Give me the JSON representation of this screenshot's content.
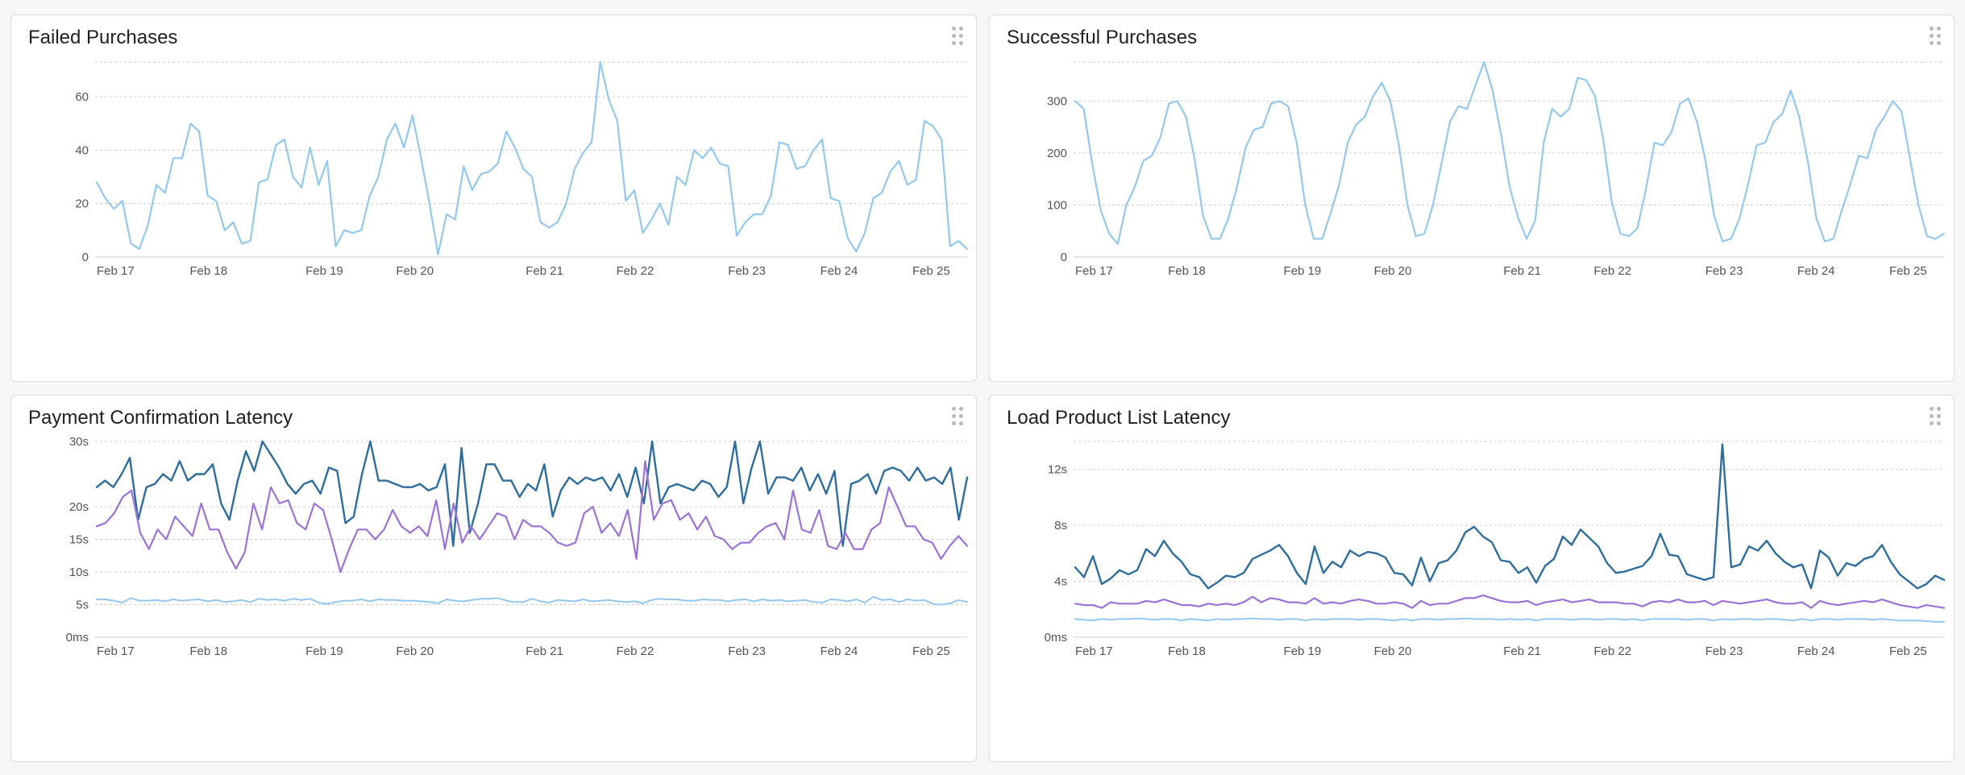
{
  "panels": [
    {
      "title": "Failed Purchases",
      "chart_data": {
        "type": "line",
        "title": "Failed Purchases",
        "x_start": "Feb 17",
        "x_step_hours": 2,
        "x_ticks": [
          "Feb 17",
          "Feb 18",
          "Feb 19",
          "Feb 20",
          "Feb 21",
          "Feb 22",
          "Feb 23",
          "Feb 24",
          "Feb 25"
        ],
        "ylim": [
          0,
          73
        ],
        "yticks": [
          0,
          20,
          40,
          60
        ],
        "ytick_labels": [
          "0",
          "20",
          "40",
          "60"
        ],
        "grid": true,
        "series": [
          {
            "color": "#94c8ee",
            "width": 2.2,
            "values": [
              28,
              22,
              18,
              21,
              5,
              3,
              12,
              27,
              24,
              37,
              37,
              50,
              47,
              23,
              21,
              10,
              13,
              5,
              6,
              28,
              29,
              42,
              44,
              30,
              26,
              41,
              27,
              36,
              4,
              10,
              9,
              10,
              23,
              30,
              44,
              50,
              41,
              53,
              37,
              20,
              1,
              16,
              14,
              34,
              25,
              31,
              32,
              35,
              47,
              41,
              33,
              30,
              13,
              11,
              13,
              20,
              33,
              39,
              43,
              73,
              59,
              51,
              21,
              25,
              9,
              14,
              20,
              12,
              30,
              27,
              40,
              37,
              41,
              35,
              34,
              8,
              13,
              16,
              16,
              23,
              43,
              42,
              33,
              34,
              40,
              44,
              22,
              21,
              7,
              2,
              9,
              22,
              24,
              32,
              36,
              27,
              29,
              51,
              49,
              44,
              4,
              6,
              3
            ]
          }
        ]
      }
    },
    {
      "title": "Successful Purchases",
      "chart_data": {
        "type": "line",
        "title": "Successful Purchases",
        "x_start": "Feb 17",
        "x_step_hours": 2,
        "x_ticks": [
          "Feb 17",
          "Feb 18",
          "Feb 19",
          "Feb 20",
          "Feb 21",
          "Feb 22",
          "Feb 23",
          "Feb 24",
          "Feb 25"
        ],
        "ylim": [
          0,
          375
        ],
        "yticks": [
          0,
          100,
          200,
          300
        ],
        "ytick_labels": [
          "0",
          "100",
          "200",
          "300"
        ],
        "grid": true,
        "series": [
          {
            "color": "#94c8ee",
            "width": 2.2,
            "values": [
              300,
              285,
              180,
              90,
              45,
              25,
              100,
              135,
              185,
              195,
              230,
              295,
              300,
              270,
              190,
              80,
              35,
              35,
              75,
              135,
              210,
              245,
              250,
              295,
              300,
              290,
              220,
              100,
              35,
              35,
              85,
              140,
              220,
              255,
              270,
              310,
              335,
              300,
              215,
              100,
              40,
              45,
              100,
              180,
              260,
              290,
              285,
              330,
              375,
              320,
              235,
              135,
              75,
              35,
              70,
              220,
              285,
              270,
              285,
              345,
              340,
              310,
              225,
              105,
              45,
              40,
              55,
              130,
              220,
              215,
              240,
              295,
              305,
              260,
              185,
              80,
              30,
              35,
              75,
              140,
              215,
              220,
              260,
              275,
              320,
              270,
              185,
              75,
              30,
              35,
              90,
              140,
              195,
              190,
              245,
              270,
              300,
              280,
              190,
              100,
              40,
              35,
              45
            ]
          }
        ]
      }
    },
    {
      "title": "Payment Confirmation Latency",
      "chart_data": {
        "type": "line",
        "title": "Payment Confirmation Latency",
        "x_start": "Feb 17",
        "x_step_hours": 2,
        "x_ticks": [
          "Feb 17",
          "Feb 18",
          "Feb 19",
          "Feb 20",
          "Feb 21",
          "Feb 22",
          "Feb 23",
          "Feb 24",
          "Feb 25"
        ],
        "ylim": [
          0,
          30
        ],
        "yticks": [
          0,
          5,
          10,
          15,
          20,
          30
        ],
        "ytick_labels": [
          "0ms",
          "5s",
          "10s",
          "15s",
          "20s",
          "30s"
        ],
        "grid": true,
        "series": [
          {
            "color": "#2f6d9c",
            "width": 2.4,
            "values": [
              23,
              24,
              23,
              25,
              27.5,
              18,
              23,
              23.5,
              25,
              24,
              27,
              24,
              25,
              25,
              26.5,
              20.5,
              18,
              24,
              28.5,
              25.5,
              30,
              28,
              26,
              23.5,
              22,
              23.5,
              24,
              22,
              26,
              25.5,
              17.5,
              18.5,
              25,
              30,
              24,
              24,
              23.5,
              23,
              23,
              23.5,
              22.5,
              23,
              26.5,
              14,
              29,
              16,
              20.5,
              26.5,
              26.5,
              24,
              24,
              21.5,
              23.5,
              22.5,
              26.5,
              18.5,
              22.5,
              24.5,
              23.5,
              24.5,
              24,
              24.5,
              22.5,
              25,
              21.5,
              26,
              20.5,
              30,
              20.5,
              23,
              23.5,
              23,
              22.5,
              24,
              23.5,
              21.5,
              23,
              30,
              20.5,
              26,
              30,
              22,
              24.5,
              24.5,
              24,
              26,
              22.5,
              25,
              22,
              25.5,
              14,
              23.5,
              24,
              25,
              22,
              25.5,
              26,
              25.5,
              24,
              26,
              24,
              24.5,
              23.5,
              26,
              18,
              24.5
            ]
          },
          {
            "color": "#9b72d6",
            "width": 2.2,
            "values": [
              17,
              17.5,
              19,
              21.5,
              22.5,
              16,
              13.5,
              16.5,
              15,
              18.5,
              17,
              15.5,
              20.5,
              16.5,
              16.5,
              13,
              10.5,
              13,
              20.5,
              16.5,
              23,
              20.5,
              21,
              17.5,
              16.5,
              20.5,
              19.5,
              15,
              10,
              13.5,
              16.5,
              16.5,
              15,
              16.5,
              19.5,
              17,
              16,
              17,
              15.5,
              21,
              13.5,
              20.5,
              14.5,
              17,
              15,
              17,
              19,
              18.5,
              15,
              18,
              17,
              17,
              16,
              14.5,
              14,
              14.5,
              19,
              20,
              16,
              17.5,
              15.5,
              19.5,
              12,
              27,
              18,
              20.5,
              21,
              18,
              19,
              16.5,
              18.5,
              15.5,
              15,
              13.5,
              14.5,
              14.5,
              16,
              17,
              17.5,
              15,
              22.5,
              16.5,
              16,
              19.5,
              14,
              13.5,
              16,
              13.5,
              13.5,
              16.5,
              17.5,
              23,
              20,
              17,
              17,
              15,
              14.5,
              12,
              14,
              15.5,
              14
            ]
          },
          {
            "color": "#94c8ee",
            "width": 2.0,
            "values": [
              5.8,
              5.8,
              5.6,
              5.3,
              6,
              5.6,
              5.6,
              5.7,
              5.5,
              5.8,
              5.6,
              5.7,
              5.8,
              5.5,
              5.7,
              5.4,
              5.5,
              5.7,
              5.4,
              5.9,
              5.7,
              5.8,
              5.6,
              5.9,
              5.7,
              5.9,
              5.3,
              5.1,
              5.4,
              5.6,
              5.6,
              5.8,
              5.5,
              5.8,
              5.7,
              5.7,
              5.6,
              5.6,
              5.5,
              5.4,
              5.2,
              5.8,
              5.6,
              5.5,
              5.7,
              5.9,
              5.9,
              6,
              5.6,
              5.4,
              5.4,
              5.9,
              5.5,
              5.3,
              5.7,
              5.6,
              5.5,
              5.8,
              5.5,
              5.6,
              5.7,
              5.5,
              5.4,
              5.5,
              5.2,
              5.7,
              5.9,
              5.8,
              5.8,
              5.6,
              5.6,
              5.8,
              5.7,
              5.7,
              5.5,
              5.7,
              5.8,
              5.5,
              5.8,
              5.6,
              5.7,
              5.5,
              5.6,
              5.7,
              5.4,
              5.3,
              5.8,
              5.7,
              5.5,
              5.8,
              5.3,
              6.2,
              5.7,
              5.8,
              5.4,
              5.8,
              5.6,
              5.7,
              5.1,
              5,
              5.2,
              5.7,
              5.4
            ]
          }
        ]
      }
    },
    {
      "title": "Load Product List Latency",
      "chart_data": {
        "type": "line",
        "title": "Load Product List Latency",
        "x_start": "Feb 17",
        "x_step_hours": 2,
        "x_ticks": [
          "Feb 17",
          "Feb 18",
          "Feb 19",
          "Feb 20",
          "Feb 21",
          "Feb 22",
          "Feb 23",
          "Feb 24",
          "Feb 25"
        ],
        "ylim": [
          0,
          14
        ],
        "yticks": [
          0,
          4,
          8,
          12
        ],
        "ytick_labels": [
          "0ms",
          "4s",
          "8s",
          "12s"
        ],
        "grid": true,
        "series": [
          {
            "color": "#2f6d9c",
            "width": 2.4,
            "values": [
              5,
              4.3,
              5.8,
              3.8,
              4.2,
              4.8,
              4.5,
              4.8,
              6.3,
              5.8,
              6.9,
              6,
              5.4,
              4.5,
              4.3,
              3.5,
              3.9,
              4.4,
              4.3,
              4.6,
              5.6,
              5.9,
              6.2,
              6.6,
              5.8,
              4.6,
              3.8,
              6.5,
              4.6,
              5.4,
              5,
              6.2,
              5.8,
              6.1,
              6,
              5.7,
              4.6,
              4.5,
              3.7,
              5.7,
              4,
              5.3,
              5.5,
              6.2,
              7.5,
              7.9,
              7.2,
              6.8,
              5.5,
              5.4,
              4.6,
              5,
              3.9,
              5.1,
              5.6,
              7.2,
              6.6,
              7.7,
              7.1,
              6.5,
              5.3,
              4.6,
              4.7,
              4.9,
              5.1,
              5.8,
              7.4,
              5.9,
              5.8,
              4.5,
              4.3,
              4.1,
              4.3,
              13.8,
              5,
              5.2,
              6.5,
              6.2,
              6.9,
              6,
              5.4,
              5,
              5.2,
              3.5,
              6.2,
              5.7,
              4.4,
              5.3,
              5.1,
              5.6,
              5.8,
              6.6,
              5.4,
              4.5,
              4,
              3.5,
              3.8,
              4.4,
              4.1
            ]
          },
          {
            "color": "#9b72d6",
            "width": 2.2,
            "values": [
              2.4,
              2.3,
              2.3,
              2.1,
              2.5,
              2.4,
              2.4,
              2.4,
              2.6,
              2.5,
              2.7,
              2.5,
              2.3,
              2.3,
              2.2,
              2.4,
              2.3,
              2.4,
              2.3,
              2.5,
              2.9,
              2.5,
              2.8,
              2.7,
              2.5,
              2.5,
              2.4,
              2.8,
              2.4,
              2.5,
              2.4,
              2.6,
              2.7,
              2.6,
              2.4,
              2.4,
              2.5,
              2.4,
              2.1,
              2.6,
              2.3,
              2.4,
              2.4,
              2.6,
              2.8,
              2.8,
              3,
              2.8,
              2.6,
              2.5,
              2.5,
              2.6,
              2.3,
              2.5,
              2.6,
              2.7,
              2.5,
              2.6,
              2.7,
              2.5,
              2.5,
              2.5,
              2.4,
              2.4,
              2.2,
              2.5,
              2.6,
              2.5,
              2.7,
              2.5,
              2.5,
              2.6,
              2.3,
              2.6,
              2.5,
              2.4,
              2.5,
              2.6,
              2.7,
              2.5,
              2.4,
              2.4,
              2.5,
              2.1,
              2.6,
              2.4,
              2.3,
              2.4,
              2.5,
              2.6,
              2.5,
              2.7,
              2.5,
              2.3,
              2.2,
              2.1,
              2.3,
              2.2,
              2.1
            ]
          },
          {
            "color": "#94c8ee",
            "width": 2.0,
            "values": [
              1.3,
              1.25,
              1.2,
              1.3,
              1.25,
              1.3,
              1.3,
              1.35,
              1.3,
              1.25,
              1.3,
              1.3,
              1.2,
              1.3,
              1.25,
              1.2,
              1.3,
              1.25,
              1.3,
              1.3,
              1.35,
              1.3,
              1.3,
              1.25,
              1.3,
              1.3,
              1.2,
              1.3,
              1.25,
              1.3,
              1.3,
              1.3,
              1.25,
              1.3,
              1.3,
              1.25,
              1.2,
              1.3,
              1.2,
              1.3,
              1.3,
              1.25,
              1.3,
              1.3,
              1.35,
              1.3,
              1.3,
              1.3,
              1.25,
              1.3,
              1.25,
              1.3,
              1.2,
              1.3,
              1.3,
              1.3,
              1.25,
              1.3,
              1.3,
              1.25,
              1.3,
              1.3,
              1.25,
              1.3,
              1.2,
              1.3,
              1.3,
              1.3,
              1.3,
              1.25,
              1.3,
              1.3,
              1.2,
              1.3,
              1.25,
              1.3,
              1.3,
              1.25,
              1.3,
              1.3,
              1.25,
              1.2,
              1.3,
              1.2,
              1.3,
              1.3,
              1.25,
              1.3,
              1.3,
              1.3,
              1.25,
              1.3,
              1.25,
              1.2,
              1.2,
              1.2,
              1.15,
              1.1,
              1.1
            ]
          }
        ]
      }
    }
  ]
}
